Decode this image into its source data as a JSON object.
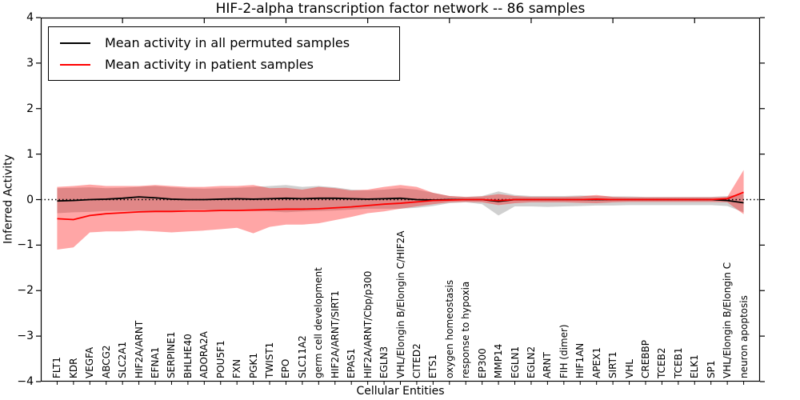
{
  "chart_data": {
    "type": "line",
    "title": "HIF-2-alpha transcription factor network -- 86 samples",
    "xlabel": "Cellular Entities",
    "ylabel": "Inferred Activity",
    "ylim": [
      -4,
      4
    ],
    "xlim": [
      0,
      44
    ],
    "yticks": [
      -4,
      -3,
      -2,
      -1,
      0,
      1,
      2,
      3,
      4
    ],
    "xticks_top": [
      5,
      10,
      15,
      20,
      25,
      30,
      35,
      40
    ],
    "grid": false,
    "zero_line": {
      "show": true,
      "style": "dotted",
      "color": "#000000"
    },
    "legend_position": "upper left",
    "categories": [
      "FLT1",
      "KDR",
      "VEGFA",
      "ABCG2",
      "SLC2A1",
      "HIF2A/ARNT",
      "EFNA1",
      "SERPINE1",
      "BHLHE40",
      "ADORA2A",
      "POU5F1",
      "FXN",
      "PGK1",
      "TWIST1",
      "EPO",
      "SLC11A2",
      "germ cell development",
      "HIF2A/ARNT/SIRT1",
      "EPAS1",
      "HIF2A/ARNT/Cbp/p300",
      "EGLN3",
      "VHL/Elongin B/Elongin C/HIF2A",
      "CITED2",
      "ETS1",
      "oxygen homeostasis",
      "response to hypoxia",
      "EP300",
      "MMP14",
      "EGLN1",
      "EGLN2",
      "ARNT",
      "FIH (dimer)",
      "HIF1AN",
      "APEX1",
      "SIRT1",
      "VHL",
      "CREBBP",
      "TCEB2",
      "TCEB1",
      "ELK1",
      "SP1",
      "VHL/Elongin B/Elongin C",
      "neuron apoptosis"
    ],
    "series": [
      {
        "name": "Mean activity in all permuted samples",
        "color": "#000000",
        "values": [
          -0.03,
          -0.02,
          0.0,
          0.01,
          0.03,
          0.06,
          0.04,
          0.01,
          0.0,
          0.0,
          0.01,
          0.02,
          0.01,
          0.02,
          0.03,
          0.02,
          0.03,
          0.03,
          0.02,
          0.01,
          0.02,
          0.03,
          0.0,
          -0.01,
          0.0,
          0.0,
          0.0,
          -0.04,
          0.0,
          0.0,
          0.0,
          0.0,
          0.0,
          0.0,
          0.0,
          0.0,
          0.0,
          0.0,
          0.0,
          0.0,
          0.0,
          -0.02,
          -0.07
        ]
      },
      {
        "name": "Mean activity in patient samples",
        "color": "#ff0000",
        "values": [
          -0.42,
          -0.44,
          -0.35,
          -0.31,
          -0.29,
          -0.27,
          -0.26,
          -0.26,
          -0.25,
          -0.25,
          -0.24,
          -0.24,
          -0.23,
          -0.22,
          -0.21,
          -0.21,
          -0.2,
          -0.18,
          -0.16,
          -0.13,
          -0.1,
          -0.08,
          -0.05,
          -0.02,
          -0.01,
          0.0,
          0.0,
          -0.02,
          0.0,
          0.0,
          0.0,
          0.0,
          0.0,
          0.01,
          0.0,
          0.0,
          0.0,
          0.0,
          0.0,
          0.0,
          0.0,
          0.02,
          0.16
        ]
      }
    ],
    "bands": [
      {
        "name": "permuted samples range",
        "color": "rgba(120,120,120,0.35)",
        "upper": [
          0.25,
          0.26,
          0.27,
          0.25,
          0.26,
          0.28,
          0.3,
          0.27,
          0.25,
          0.24,
          0.25,
          0.26,
          0.28,
          0.3,
          0.32,
          0.28,
          0.3,
          0.27,
          0.22,
          0.2,
          0.22,
          0.25,
          0.22,
          0.15,
          0.08,
          0.06,
          0.08,
          0.18,
          0.1,
          0.08,
          0.08,
          0.08,
          0.09,
          0.08,
          0.07,
          0.07,
          0.06,
          0.06,
          0.06,
          0.06,
          0.06,
          0.08,
          0.12
        ],
        "lower": [
          -0.3,
          -0.28,
          -0.27,
          -0.25,
          -0.25,
          -0.25,
          -0.26,
          -0.25,
          -0.22,
          -0.22,
          -0.24,
          -0.24,
          -0.25,
          -0.26,
          -0.28,
          -0.26,
          -0.25,
          -0.24,
          -0.22,
          -0.2,
          -0.2,
          -0.2,
          -0.18,
          -0.14,
          -0.08,
          -0.06,
          -0.1,
          -0.35,
          -0.15,
          -0.15,
          -0.16,
          -0.15,
          -0.14,
          -0.13,
          -0.13,
          -0.12,
          -0.12,
          -0.12,
          -0.12,
          -0.12,
          -0.12,
          -0.14,
          -0.28
        ]
      },
      {
        "name": "patient samples range",
        "color": "rgba(255,0,0,0.35)",
        "upper": [
          0.28,
          0.3,
          0.33,
          0.3,
          0.3,
          0.3,
          0.32,
          0.3,
          0.28,
          0.28,
          0.3,
          0.3,
          0.32,
          0.25,
          0.26,
          0.22,
          0.28,
          0.25,
          0.2,
          0.22,
          0.28,
          0.32,
          0.28,
          0.15,
          0.08,
          0.06,
          0.07,
          0.12,
          0.08,
          0.06,
          0.06,
          0.06,
          0.07,
          0.1,
          0.06,
          0.05,
          0.05,
          0.05,
          0.05,
          0.05,
          0.05,
          0.06,
          0.65
        ],
        "lower": [
          -1.1,
          -1.05,
          -0.72,
          -0.7,
          -0.7,
          -0.68,
          -0.7,
          -0.72,
          -0.7,
          -0.68,
          -0.65,
          -0.62,
          -0.74,
          -0.6,
          -0.55,
          -0.55,
          -0.52,
          -0.45,
          -0.38,
          -0.3,
          -0.26,
          -0.2,
          -0.15,
          -0.1,
          -0.06,
          -0.05,
          -0.06,
          -0.12,
          -0.08,
          -0.06,
          -0.06,
          -0.06,
          -0.07,
          -0.08,
          -0.06,
          -0.05,
          -0.05,
          -0.05,
          -0.05,
          -0.05,
          -0.05,
          -0.06,
          -0.32
        ]
      }
    ]
  }
}
